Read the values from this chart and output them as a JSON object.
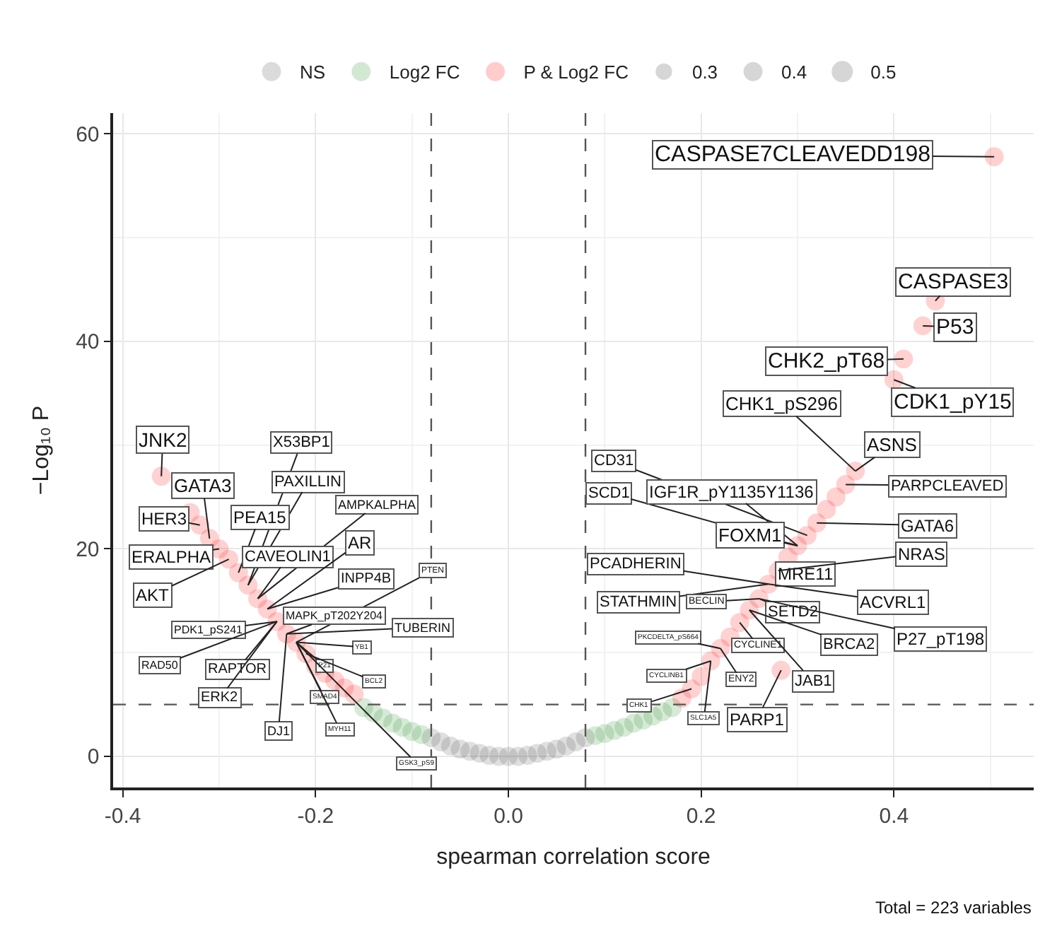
{
  "chart_data": {
    "type": "bubble",
    "xlabel": "spearman correlation score",
    "ylabel": "−Log₁₀ P",
    "xlim": [
      -0.41,
      0.545
    ],
    "ylim": [
      -3,
      62
    ],
    "xticks": [
      {
        "value": -0.4,
        "label": "-0.4"
      },
      {
        "value": -0.2,
        "label": "-0.2"
      },
      {
        "value": 0,
        "label": "0.0"
      },
      {
        "value": 0.2,
        "label": "0.2"
      },
      {
        "value": 0.4,
        "label": "0.4"
      }
    ],
    "yticks": [
      0,
      20,
      40,
      60
    ],
    "grid": true,
    "legend": "top",
    "marker": "circle",
    "size_legend": [
      0.3,
      0.4,
      0.5
    ],
    "series": [
      {
        "name": "NS",
        "color": "#4d4d4d",
        "x": [
          -0.08,
          -0.07,
          -0.06,
          -0.05,
          -0.04,
          -0.03,
          -0.02,
          -0.01,
          0,
          0.01,
          0.02,
          0.03,
          0.04,
          0.05,
          0.06,
          0.07,
          0.08
        ],
        "values": [
          1.8,
          1.4,
          1.0,
          0.7,
          0.5,
          0.3,
          0.1,
          0,
          0,
          0,
          0.1,
          0.3,
          0.5,
          0.7,
          1.0,
          1.4,
          1.8
        ],
        "sizes": [
          0.4,
          0.4,
          0.4,
          0.4,
          0.4,
          0.4,
          0.4,
          0.4,
          0.4,
          0.4,
          0.4,
          0.4,
          0.4,
          0.4,
          0.4,
          0.4,
          0.4
        ]
      },
      {
        "name": "Log2 FC",
        "color": "#228b22",
        "x": [
          -0.15,
          -0.14,
          -0.13,
          -0.12,
          -0.11,
          -0.1,
          -0.09,
          0.09,
          0.1,
          0.11,
          0.12,
          0.13,
          0.14,
          0.15,
          0.16,
          0.17
        ],
        "values": [
          4.7,
          4.2,
          3.7,
          3.2,
          2.8,
          2.4,
          2.1,
          2.0,
          2.2,
          2.5,
          2.8,
          3.2,
          3.5,
          3.9,
          4.3,
          4.7
        ],
        "sizes": [
          0.4,
          0.4,
          0.4,
          0.4,
          0.4,
          0.4,
          0.4,
          0.4,
          0.4,
          0.4,
          0.4,
          0.4,
          0.4,
          0.4,
          0.4,
          0.4
        ]
      },
      {
        "name": "P & Log2 FC",
        "color": "#ff0000",
        "x": [
          -0.36,
          -0.33,
          -0.32,
          -0.31,
          -0.3,
          -0.29,
          -0.28,
          -0.27,
          -0.26,
          -0.25,
          -0.24,
          -0.23,
          -0.22,
          -0.21,
          -0.2,
          -0.19,
          -0.18,
          -0.17,
          -0.16,
          0.18,
          0.19,
          0.2,
          0.21,
          0.22,
          0.23,
          0.24,
          0.25,
          0.26,
          0.27,
          0.28,
          0.283,
          0.29,
          0.3,
          0.31,
          0.32,
          0.33,
          0.34,
          0.35,
          0.36,
          0.4,
          0.41,
          0.43,
          0.443,
          0.504
        ],
        "values": [
          27.0,
          23.5,
          22.3,
          21.0,
          20.0,
          19.0,
          17.7,
          16.5,
          15.2,
          14.2,
          13.0,
          11.8,
          11.0,
          9.9,
          8.7,
          8.0,
          7.3,
          6.6,
          6.0,
          5.6,
          6.5,
          7.7,
          9.2,
          10.4,
          11.5,
          12.9,
          14.1,
          15.2,
          16.6,
          17.9,
          8.3,
          19.2,
          20.3,
          21.3,
          22.5,
          23.8,
          25.0,
          26.2,
          27.5,
          36.3,
          38.3,
          41.5,
          43.9,
          57.8
        ],
        "sizes": [
          0.4,
          0.4,
          0.4,
          0.4,
          0.4,
          0.4,
          0.4,
          0.4,
          0.4,
          0.4,
          0.4,
          0.4,
          0.4,
          0.4,
          0.4,
          0.4,
          0.4,
          0.4,
          0.4,
          0.4,
          0.4,
          0.4,
          0.4,
          0.4,
          0.4,
          0.4,
          0.4,
          0.4,
          0.4,
          0.4,
          0.4,
          0.4,
          0.4,
          0.4,
          0.4,
          0.4,
          0.4,
          0.4,
          0.4,
          0.4,
          0.4,
          0.4,
          0.4,
          0.4
        ]
      }
    ],
    "ref_lines": [
      {
        "axis": "x",
        "value": -0.08,
        "line_style": "dashed",
        "color": "#555555"
      },
      {
        "axis": "x",
        "value": 0.08,
        "line_style": "dashed",
        "color": "#555555"
      },
      {
        "axis": "y",
        "value": 5,
        "line_style": "dashed",
        "color": "#555555"
      }
    ],
    "annotations": [
      {
        "text": "JNK2",
        "x": -0.36,
        "y": 27.0
      },
      {
        "text": "GATA3",
        "x": -0.31,
        "y": 21.0
      },
      {
        "text": "X53BP1",
        "x": -0.27,
        "y": 16.5
      },
      {
        "text": "PAXILLIN",
        "x": -0.27,
        "y": 16.5
      },
      {
        "text": "HER3",
        "x": -0.32,
        "y": 22.3
      },
      {
        "text": "PEA15",
        "x": -0.28,
        "y": 17.7
      },
      {
        "text": "AMPKALPHA",
        "x": -0.26,
        "y": 15.2
      },
      {
        "text": "ERALPHA",
        "x": -0.3,
        "y": 20.0
      },
      {
        "text": "CAVEOLIN1",
        "x": -0.26,
        "y": 15.2
      },
      {
        "text": "AR",
        "x": -0.25,
        "y": 14.2
      },
      {
        "text": "AKT",
        "x": -0.29,
        "y": 19.0
      },
      {
        "text": "INPP4B",
        "x": -0.25,
        "y": 14.2
      },
      {
        "text": "PTEN",
        "x": -0.22,
        "y": 11.0
      },
      {
        "text": "MAPK_pT202Y204",
        "x": -0.23,
        "y": 11.8
      },
      {
        "text": "TUBERIN",
        "x": -0.23,
        "y": 11.8
      },
      {
        "text": "PDK1_pS241",
        "x": -0.24,
        "y": 13.0
      },
      {
        "text": "RAD50",
        "x": -0.24,
        "y": 13.0
      },
      {
        "text": "RAPTOR",
        "x": -0.24,
        "y": 13.0
      },
      {
        "text": "ERK2",
        "x": -0.24,
        "y": 13.0
      },
      {
        "text": "DJ1",
        "x": -0.23,
        "y": 11.8
      },
      {
        "text": "YB1",
        "x": -0.22,
        "y": 11.0
      },
      {
        "text": "P21",
        "x": -0.22,
        "y": 11.0
      },
      {
        "text": "BCL2",
        "x": -0.21,
        "y": 9.9
      },
      {
        "text": "SMAD4",
        "x": -0.22,
        "y": 11.0
      },
      {
        "text": "MYH11",
        "x": -0.22,
        "y": 11.0
      },
      {
        "text": "GSK3_pS9",
        "x": -0.22,
        "y": 11.0
      },
      {
        "text": "CASPASE7CLEAVEDD198",
        "x": 0.504,
        "y": 57.8
      },
      {
        "text": "CASPASE3",
        "x": 0.443,
        "y": 43.9
      },
      {
        "text": "P53",
        "x": 0.43,
        "y": 41.5
      },
      {
        "text": "CHK2_pT68",
        "x": 0.41,
        "y": 38.3
      },
      {
        "text": "CDK1_pY15",
        "x": 0.4,
        "y": 36.3
      },
      {
        "text": "CHK1_pS296",
        "x": 0.36,
        "y": 27.5
      },
      {
        "text": "ASNS",
        "x": 0.36,
        "y": 27.5
      },
      {
        "text": "CD31",
        "x": 0.31,
        "y": 21.3
      },
      {
        "text": "PARPCLEAVED",
        "x": 0.35,
        "y": 26.2
      },
      {
        "text": "SCD1",
        "x": 0.3,
        "y": 20.3
      },
      {
        "text": "IGF1R_pY1135Y1136",
        "x": 0.3,
        "y": 20.3
      },
      {
        "text": "FOXM1",
        "x": 0.3,
        "y": 20.3
      },
      {
        "text": "GATA6",
        "x": 0.32,
        "y": 22.5
      },
      {
        "text": "MRE11",
        "x": 0.28,
        "y": 17.9
      },
      {
        "text": "NRAS",
        "x": 0.28,
        "y": 17.9
      },
      {
        "text": "PCADHERIN",
        "x": 0.27,
        "y": 16.6
      },
      {
        "text": "ACVRL1",
        "x": 0.27,
        "y": 16.6
      },
      {
        "text": "STATHMIN",
        "x": 0.27,
        "y": 16.6
      },
      {
        "text": "BECLIN",
        "x": 0.26,
        "y": 15.2
      },
      {
        "text": "SETD2",
        "x": 0.26,
        "y": 15.2
      },
      {
        "text": "P27_pT198",
        "x": 0.26,
        "y": 15.2
      },
      {
        "text": "PKCDELTA_pS664",
        "x": 0.22,
        "y": 10.4
      },
      {
        "text": "CYCLINE1",
        "x": 0.24,
        "y": 12.9
      },
      {
        "text": "BRCA2",
        "x": 0.25,
        "y": 14.1
      },
      {
        "text": "CYCLINB1",
        "x": 0.21,
        "y": 9.2
      },
      {
        "text": "ENY2",
        "x": 0.22,
        "y": 10.4
      },
      {
        "text": "JAB1",
        "x": 0.25,
        "y": 14.1
      },
      {
        "text": "CHK1",
        "x": 0.19,
        "y": 6.5
      },
      {
        "text": "SLC1A5",
        "x": 0.21,
        "y": 9.2
      },
      {
        "text": "PARP1",
        "x": 0.283,
        "y": 8.3
      },
      "Total = 223 variables"
    ]
  }
}
